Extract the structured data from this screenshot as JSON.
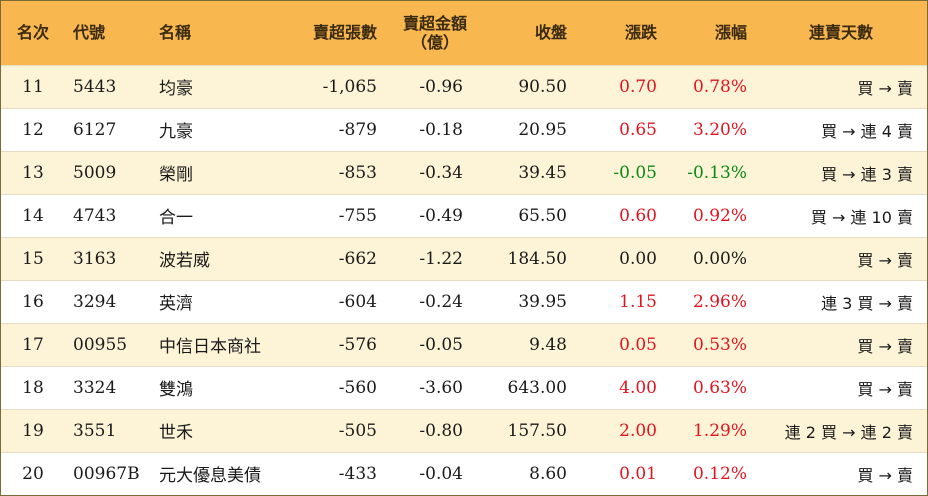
{
  "table": {
    "headers": {
      "rank": "名次",
      "code": "代號",
      "name": "名稱",
      "sell_lots": "賣超張數",
      "sell_amount_line1": "賣超金額",
      "sell_amount_line2": "（億）",
      "close": "收盤",
      "change": "漲跌",
      "change_pct": "漲幅",
      "streak": "連賣天數"
    },
    "rows": [
      {
        "rank": "11",
        "code": "5443",
        "name": "均豪",
        "sell_lots": "-1,065",
        "sell_amount": "-0.96",
        "close": "90.50",
        "change": "0.70",
        "change_pct": "0.78%",
        "streak": "買 → 賣",
        "direction": "up"
      },
      {
        "rank": "12",
        "code": "6127",
        "name": "九豪",
        "sell_lots": "-879",
        "sell_amount": "-0.18",
        "close": "20.95",
        "change": "0.65",
        "change_pct": "3.20%",
        "streak": "買 → 連 4 賣",
        "direction": "up"
      },
      {
        "rank": "13",
        "code": "5009",
        "name": "榮剛",
        "sell_lots": "-853",
        "sell_amount": "-0.34",
        "close": "39.45",
        "change": "-0.05",
        "change_pct": "-0.13%",
        "streak": "買 → 連 3 賣",
        "direction": "down"
      },
      {
        "rank": "14",
        "code": "4743",
        "name": "合一",
        "sell_lots": "-755",
        "sell_amount": "-0.49",
        "close": "65.50",
        "change": "0.60",
        "change_pct": "0.92%",
        "streak": "買 → 連 10 賣",
        "direction": "up"
      },
      {
        "rank": "15",
        "code": "3163",
        "name": "波若威",
        "sell_lots": "-662",
        "sell_amount": "-1.22",
        "close": "184.50",
        "change": "0.00",
        "change_pct": "0.00%",
        "streak": "買 → 賣",
        "direction": "flat"
      },
      {
        "rank": "16",
        "code": "3294",
        "name": "英濟",
        "sell_lots": "-604",
        "sell_amount": "-0.24",
        "close": "39.95",
        "change": "1.15",
        "change_pct": "2.96%",
        "streak": "連 3 買 → 賣",
        "direction": "up"
      },
      {
        "rank": "17",
        "code": "00955",
        "name": "中信日本商社",
        "sell_lots": "-576",
        "sell_amount": "-0.05",
        "close": "9.48",
        "change": "0.05",
        "change_pct": "0.53%",
        "streak": "買 → 賣",
        "direction": "up"
      },
      {
        "rank": "18",
        "code": "3324",
        "name": "雙鴻",
        "sell_lots": "-560",
        "sell_amount": "-3.60",
        "close": "643.00",
        "change": "4.00",
        "change_pct": "0.63%",
        "streak": "買 → 賣",
        "direction": "up"
      },
      {
        "rank": "19",
        "code": "3551",
        "name": "世禾",
        "sell_lots": "-505",
        "sell_amount": "-0.80",
        "close": "157.50",
        "change": "2.00",
        "change_pct": "1.29%",
        "streak": "連 2 買 → 連 2 賣",
        "direction": "up"
      },
      {
        "rank": "20",
        "code": "00967B",
        "name": "元大優息美債",
        "sell_lots": "-433",
        "sell_amount": "-0.04",
        "close": "8.60",
        "change": "0.01",
        "change_pct": "0.12%",
        "streak": "買 → 賣",
        "direction": "up"
      }
    ],
    "colors": {
      "up": "#e0141e",
      "down": "#0a8a14",
      "header_bg": "#f9b84f",
      "stripe_bg": "#fdf3d6"
    }
  }
}
